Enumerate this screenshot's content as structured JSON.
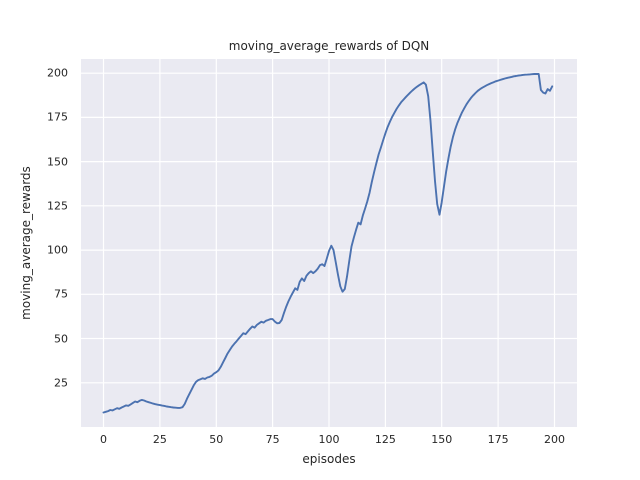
{
  "chart_data": {
    "type": "line",
    "title": "moving_average_rewards of DQN",
    "xlabel": "episodes",
    "ylabel": "moving_average_rewards",
    "x_ticks": [
      0,
      25,
      50,
      75,
      100,
      125,
      150,
      175,
      200
    ],
    "y_ticks": [
      25,
      50,
      75,
      100,
      125,
      150,
      175,
      200
    ],
    "xlim": [
      -10,
      210
    ],
    "ylim": [
      0,
      208
    ],
    "grid": true,
    "legend": "none",
    "plot_bg_color": "#EAEAF2",
    "grid_color": "#FFFFFF",
    "line_color": "#4C72B0",
    "text_color": "#262626",
    "series": [
      {
        "name": "moving_average_rewards",
        "x_start": 0,
        "x_step": 1,
        "y": [
          8.2,
          8.6,
          9.0,
          9.6,
          9.4,
          10.0,
          10.6,
          10.3,
          11.0,
          11.6,
          12.2,
          12.0,
          12.8,
          13.6,
          14.4,
          14.0,
          14.8,
          15.3,
          15.0,
          14.4,
          14.0,
          13.6,
          13.2,
          12.9,
          12.6,
          12.4,
          12.1,
          11.9,
          11.6,
          11.4,
          11.2,
          11.0,
          10.9,
          10.8,
          10.8,
          11.2,
          13.0,
          16.0,
          18.5,
          21.0,
          23.5,
          25.5,
          26.5,
          27.0,
          27.5,
          27.2,
          28.0,
          28.3,
          29.0,
          30.2,
          31.0,
          32.0,
          34.0,
          36.5,
          39.0,
          41.5,
          43.5,
          45.5,
          47.0,
          48.5,
          50.0,
          51.5,
          53.0,
          52.5,
          54.0,
          55.5,
          56.8,
          56.2,
          57.7,
          58.6,
          59.5,
          59.0,
          60.0,
          60.5,
          61.0,
          61.0,
          59.6,
          58.6,
          58.8,
          60.5,
          64.3,
          68.0,
          71.0,
          73.7,
          76.0,
          78.4,
          77.5,
          82.0,
          84.0,
          82.5,
          85.5,
          87.0,
          88.0,
          87.0,
          88.0,
          89.5,
          91.5,
          92.0,
          91.0,
          95.0,
          99.5,
          102.5,
          100.0,
          93.0,
          86.0,
          79.5,
          76.5,
          78.0,
          85.0,
          94.0,
          102.0,
          107.0,
          111.5,
          115.5,
          114.5,
          119.5,
          123.5,
          127.5,
          132.5,
          138.5,
          144.0,
          149.0,
          154.0,
          158.0,
          162.0,
          166.0,
          169.5,
          172.5,
          175.2,
          177.6,
          179.8,
          181.8,
          183.5,
          185.0,
          186.4,
          187.7,
          189.0,
          190.2,
          191.3,
          192.3,
          193.2,
          194.0,
          194.8,
          193.5,
          187.0,
          173.0,
          156.0,
          139.0,
          126.0,
          120.0,
          127.0,
          136.0,
          144.5,
          152.0,
          158.5,
          164.0,
          168.5,
          172.0,
          175.0,
          177.8,
          180.2,
          182.4,
          184.3,
          186.0,
          187.5,
          188.8,
          190.0,
          191.0,
          191.8,
          192.5,
          193.2,
          193.8,
          194.4,
          194.9,
          195.4,
          195.8,
          196.2,
          196.6,
          197.0,
          197.3,
          197.6,
          197.9,
          198.2,
          198.4,
          198.6,
          198.8,
          199.0,
          199.1,
          199.2,
          199.3,
          199.4,
          199.5,
          199.5,
          199.5,
          190.5,
          189.0,
          188.5,
          191.0,
          190.0,
          192.5
        ]
      }
    ]
  }
}
